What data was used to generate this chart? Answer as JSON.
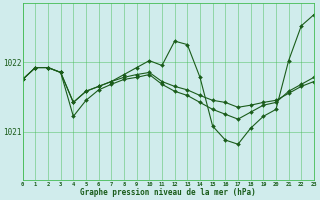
{
  "title": "Graphe pression niveau de la mer (hPa)",
  "bg_color": "#d0ecec",
  "grid_color": "#44bb55",
  "line_color": "#1a5c1a",
  "xlim": [
    0,
    23
  ],
  "ylim": [
    1020.3,
    1022.85
  ],
  "yticks": [
    1021.0,
    1022.0
  ],
  "xticks": [
    0,
    1,
    2,
    3,
    4,
    5,
    6,
    7,
    8,
    9,
    10,
    11,
    12,
    13,
    14,
    15,
    16,
    17,
    18,
    19,
    20,
    21,
    22,
    23
  ],
  "lines": [
    {
      "x": [
        0,
        1,
        2,
        3,
        4,
        5,
        6,
        7,
        8,
        9,
        10,
        11,
        12,
        13,
        14,
        15,
        16,
        17,
        18,
        19,
        20,
        21,
        22,
        23
      ],
      "y": [
        1021.75,
        1021.92,
        1021.92,
        1021.85,
        1021.42,
        1021.58,
        1021.65,
        1021.72,
        1021.82,
        1021.92,
        1022.02,
        1021.95,
        1022.3,
        1022.25,
        1021.78,
        1021.08,
        1020.88,
        1020.82,
        1021.05,
        1021.22,
        1021.32,
        1022.02,
        1022.52,
        1022.68
      ]
    },
    {
      "x": [
        0,
        1,
        2,
        3,
        4,
        5,
        6,
        7,
        8,
        9,
        10,
        11,
        12,
        13,
        14,
        15,
        16,
        17,
        18,
        19,
        20,
        21,
        22,
        23
      ],
      "y": [
        1021.75,
        1021.92,
        1021.92,
        1021.85,
        1021.42,
        1021.58,
        1021.65,
        1021.72,
        1021.78,
        1021.82,
        1021.85,
        1021.72,
        1021.65,
        1021.6,
        1021.52,
        1021.45,
        1021.42,
        1021.35,
        1021.38,
        1021.42,
        1021.45,
        1021.55,
        1021.65,
        1021.72
      ]
    },
    {
      "x": [
        0,
        1,
        2,
        3,
        4,
        5,
        6,
        7,
        8,
        9,
        10,
        11,
        12,
        13,
        14,
        15,
        16,
        17,
        18,
        19,
        20,
        21,
        22,
        23
      ],
      "y": [
        1021.75,
        1021.92,
        1021.92,
        1021.85,
        1021.22,
        1021.45,
        1021.6,
        1021.68,
        1021.75,
        1021.78,
        1021.82,
        1021.68,
        1021.58,
        1021.52,
        1021.42,
        1021.32,
        1021.25,
        1021.18,
        1021.28,
        1021.38,
        1021.42,
        1021.58,
        1021.68,
        1021.78
      ]
    }
  ]
}
